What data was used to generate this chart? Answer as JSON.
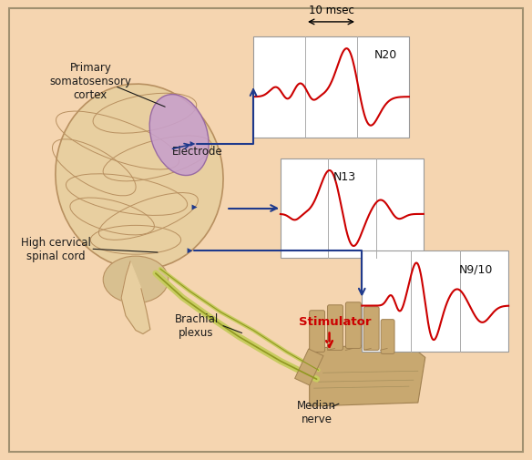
{
  "background_color": "#F5D5B0",
  "border_color": "#A09070",
  "fig_width": 5.84,
  "fig_height": 5.06,
  "labels": {
    "primary_cortex": "Primary\nsomatosensory\ncortex",
    "electrode": "Electrode",
    "high_cervical": "High cervical\nspinal cord",
    "brachial_plexus": "Brachial\nplexus",
    "median_nerve": "Median\nnerve",
    "stimulator": "Stimulator",
    "msec": "10 msec",
    "N20": "N20",
    "N13": "N13",
    "N910": "N9/10"
  },
  "waveform_box_color": "#FFFFFF",
  "waveform_line_color": "#CC0000",
  "arrow_color": "#1F3A8C",
  "label_color": "#1a1a1a",
  "stimulator_color": "#CC0000",
  "brain_color": "#E8CFA0",
  "brain_border": "#B89060",
  "cortex_color": "#C8A0CC",
  "nerve_color": "#C8CC60",
  "hand_color": "#C8A870",
  "hand_border": "#A08050"
}
